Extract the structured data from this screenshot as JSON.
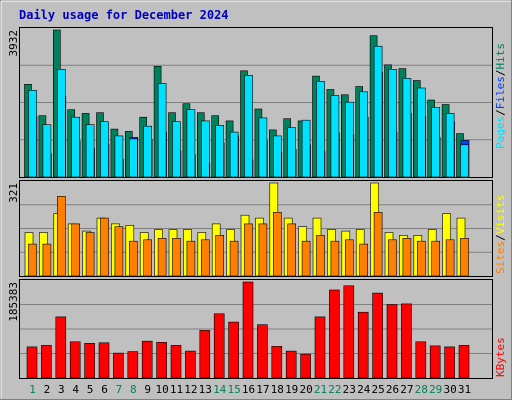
{
  "title": "Daily usage for December 2024",
  "colors": {
    "background": "#c0c0c0",
    "title": "#0000c0",
    "hits": "#00805c",
    "files": "#00e0ff",
    "pages": "#0040ff",
    "visits": "#ffff00",
    "sites": "#ff8000",
    "kbytes": "#ff0000"
  },
  "chart_data": [
    {
      "type": "bar",
      "title": "Daily usage for December 2024",
      "panel": "hits-files-pages",
      "ylabel_parts": [
        "Pages",
        "/",
        "Files",
        "/",
        "Hits"
      ],
      "ymax_label": "3932",
      "ylim": [
        0,
        3932
      ],
      "categories": [
        "1",
        "2",
        "3",
        "4",
        "5",
        "6",
        "7",
        "8",
        "9",
        "10",
        "11",
        "12",
        "13",
        "14",
        "15",
        "16",
        "17",
        "18",
        "19",
        "20",
        "21",
        "22",
        "23",
        "24",
        "25",
        "26",
        "27",
        "28",
        "29",
        "30",
        "31"
      ],
      "series": [
        {
          "name": "Hits",
          "values": [
            2480,
            1640,
            3932,
            1800,
            1700,
            1720,
            1280,
            1220,
            1600,
            2960,
            1720,
            1960,
            1720,
            1640,
            1500,
            2840,
            1820,
            1260,
            1560,
            1500,
            2700,
            2340,
            2200,
            2420,
            3780,
            3000,
            2900,
            2580,
            2060,
            1940,
            1160
          ]
        },
        {
          "name": "Files",
          "values": [
            2320,
            1400,
            2880,
            1600,
            1400,
            1480,
            1100,
            1020,
            1360,
            2500,
            1480,
            1800,
            1500,
            1380,
            1200,
            2720,
            1580,
            1100,
            1320,
            1520,
            2560,
            2180,
            2000,
            2280,
            3500,
            2880,
            2640,
            2380,
            1860,
            1700,
            860
          ]
        },
        {
          "name": "Pages",
          "values": [
            1620,
            620,
            2160,
            960,
            760,
            880,
            480,
            1060,
            1000,
            1200,
            700,
            600,
            380,
            920,
            1100,
            460,
            960,
            660,
            740,
            860,
            680,
            1180,
            1140,
            1600,
            2800,
            1200,
            1700,
            1620,
            1060,
            1480,
            980
          ]
        }
      ]
    },
    {
      "type": "bar",
      "panel": "visits-sites",
      "ylabel_parts": [
        "Sites",
        "/",
        "Visits"
      ],
      "ymax_label": "321",
      "ylim": [
        0,
        321
      ],
      "categories": [
        "1",
        "2",
        "3",
        "4",
        "5",
        "6",
        "7",
        "8",
        "9",
        "10",
        "11",
        "12",
        "13",
        "14",
        "15",
        "16",
        "17",
        "18",
        "19",
        "20",
        "21",
        "22",
        "23",
        "24",
        "25",
        "26",
        "27",
        "28",
        "29",
        "30",
        "31"
      ],
      "series": [
        {
          "name": "Visits",
          "values": [
            150,
            150,
            215,
            180,
            155,
            200,
            180,
            175,
            150,
            160,
            160,
            160,
            150,
            180,
            160,
            210,
            200,
            321,
            200,
            170,
            200,
            160,
            155,
            160,
            321,
            150,
            140,
            140,
            160,
            215,
            200
          ]
        },
        {
          "name": "Sites",
          "values": [
            110,
            110,
            275,
            180,
            150,
            200,
            170,
            120,
            125,
            130,
            130,
            120,
            125,
            140,
            120,
            180,
            180,
            220,
            180,
            120,
            140,
            120,
            125,
            110,
            220,
            125,
            130,
            120,
            120,
            125,
            130
          ]
        }
      ]
    },
    {
      "type": "bar",
      "panel": "kbytes",
      "ylabel_parts": [
        "KBytes"
      ],
      "ymax_label": "185383",
      "ylim": [
        0,
        185383
      ],
      "categories": [
        "1",
        "2",
        "3",
        "4",
        "5",
        "6",
        "7",
        "8",
        "9",
        "10",
        "11",
        "12",
        "13",
        "14",
        "15",
        "16",
        "17",
        "18",
        "19",
        "20",
        "21",
        "22",
        "23",
        "24",
        "25",
        "26",
        "27",
        "28",
        "29",
        "30",
        "31"
      ],
      "series": [
        {
          "name": "KBytes",
          "values": [
            60000,
            63000,
            118000,
            70000,
            67000,
            68000,
            48000,
            51000,
            71000,
            69000,
            63000,
            52000,
            92000,
            124000,
            108000,
            185383,
            103000,
            61000,
            52000,
            46000,
            118000,
            170000,
            178000,
            127000,
            164000,
            142000,
            143000,
            70000,
            62000,
            60000,
            63000
          ]
        }
      ]
    }
  ]
}
